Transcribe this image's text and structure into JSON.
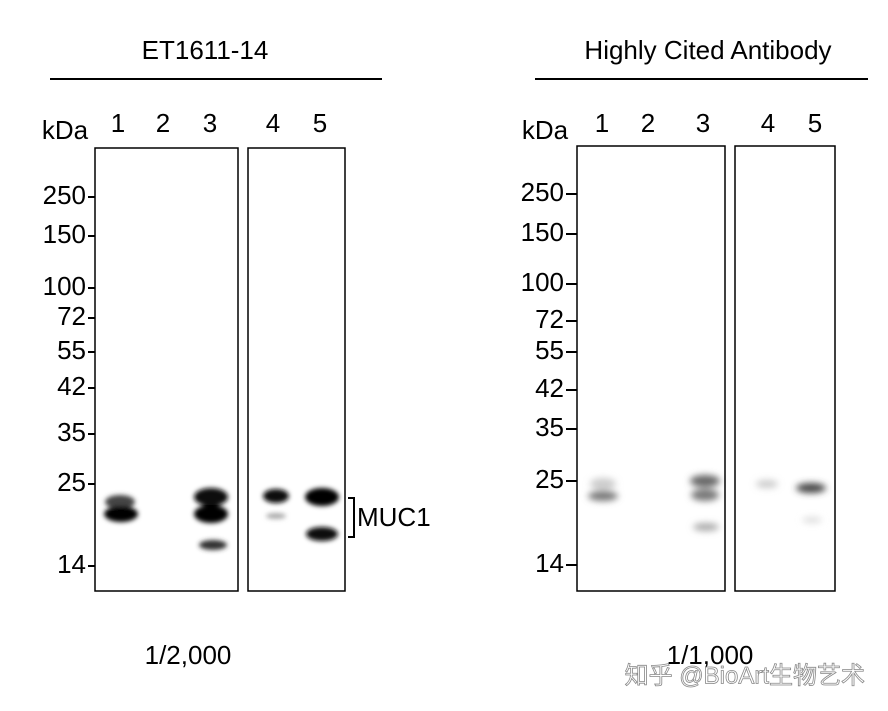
{
  "panels": [
    {
      "title": "ET1611-14",
      "kda": "kDa",
      "lanes": [
        "1",
        "2",
        "3",
        "4",
        "5"
      ],
      "markers": [
        "250",
        "150",
        "100",
        "72",
        "55",
        "42",
        "35",
        "25",
        "14"
      ],
      "dilution": "1/2,000"
    },
    {
      "title": "Highly Cited Antibody",
      "kda": "kDa",
      "lanes": [
        "1",
        "2",
        "3",
        "4",
        "5"
      ],
      "markers": [
        "250",
        "150",
        "100",
        "72",
        "55",
        "42",
        "35",
        "25",
        "14"
      ],
      "dilution": "1/1,000"
    }
  ],
  "band_label": "MUC1",
  "watermark": "知乎 @BioArt生物艺术"
}
